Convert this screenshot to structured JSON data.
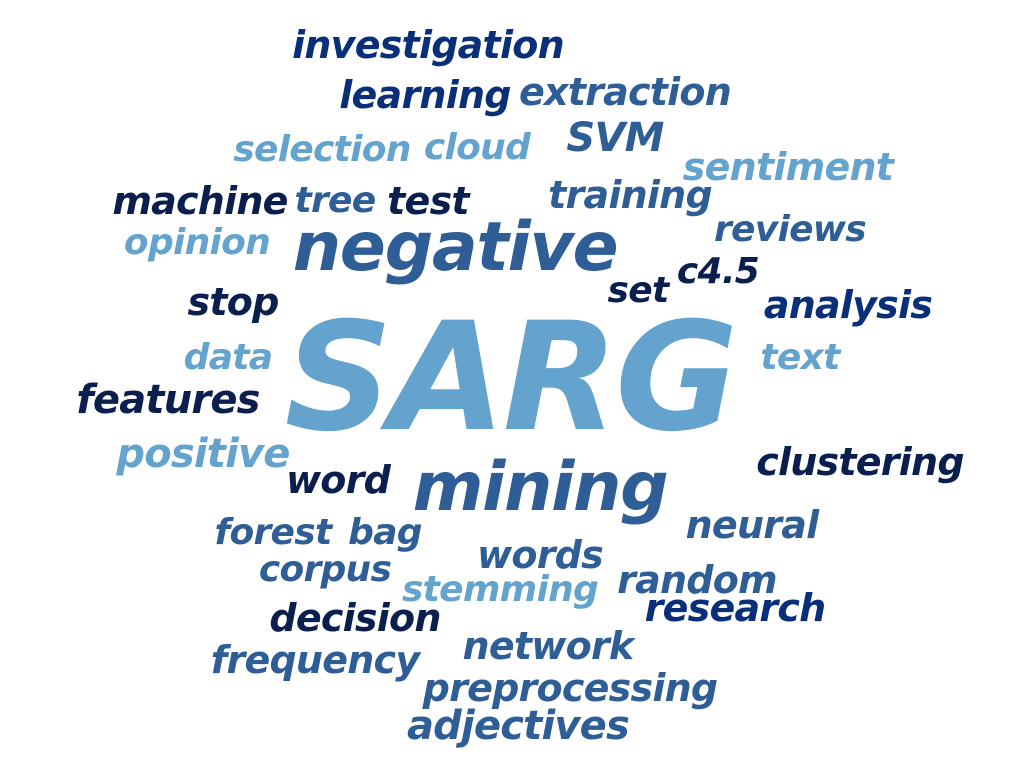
{
  "words": [
    {
      "text": "SARG",
      "color": "#63a3cd"
    },
    {
      "text": "negative",
      "color": "#2e5e95"
    },
    {
      "text": "mining",
      "color": "#2e5e95"
    },
    {
      "text": "investigation",
      "color": "#0a2f7a"
    },
    {
      "text": "learning",
      "color": "#0a2f7a"
    },
    {
      "text": "extraction",
      "color": "#2e5e95"
    },
    {
      "text": "SVM",
      "color": "#2e5e95"
    },
    {
      "text": "selection",
      "color": "#63a3cd"
    },
    {
      "text": "cloud",
      "color": "#63a3cd"
    },
    {
      "text": "sentiment",
      "color": "#63a3cd"
    },
    {
      "text": "machine",
      "color": "#0b1f4f"
    },
    {
      "text": "tree",
      "color": "#2e5e95"
    },
    {
      "text": "test",
      "color": "#0b1f4f"
    },
    {
      "text": "training",
      "color": "#2e5e95"
    },
    {
      "text": "reviews",
      "color": "#2e5e95"
    },
    {
      "text": "opinion",
      "color": "#63a3cd"
    },
    {
      "text": "c4.5",
      "color": "#0b1f4f"
    },
    {
      "text": "set",
      "color": "#0b1f4f"
    },
    {
      "text": "stop",
      "color": "#0b1f4f"
    },
    {
      "text": "analysis",
      "color": "#0a2f7a"
    },
    {
      "text": "data",
      "color": "#63a3cd"
    },
    {
      "text": "text",
      "color": "#63a3cd"
    },
    {
      "text": "features",
      "color": "#0b1f4f"
    },
    {
      "text": "positive",
      "color": "#63a3cd"
    },
    {
      "text": "clustering",
      "color": "#0b1f4f"
    },
    {
      "text": "word",
      "color": "#0b1f4f"
    },
    {
      "text": "forest",
      "color": "#2e5e95"
    },
    {
      "text": "bag",
      "color": "#2e5e95"
    },
    {
      "text": "neural",
      "color": "#2e5e95"
    },
    {
      "text": "words",
      "color": "#2e5e95"
    },
    {
      "text": "corpus",
      "color": "#2e5e95"
    },
    {
      "text": "stemming",
      "color": "#63a3cd"
    },
    {
      "text": "random",
      "color": "#2e5e95"
    },
    {
      "text": "research",
      "color": "#0a2f7a"
    },
    {
      "text": "decision",
      "color": "#0b1f4f"
    },
    {
      "text": "network",
      "color": "#2e5e95"
    },
    {
      "text": "frequency",
      "color": "#2e5e95"
    },
    {
      "text": "preprocessing",
      "color": "#2e5e95"
    },
    {
      "text": "adjectives",
      "color": "#2e5e95"
    }
  ]
}
